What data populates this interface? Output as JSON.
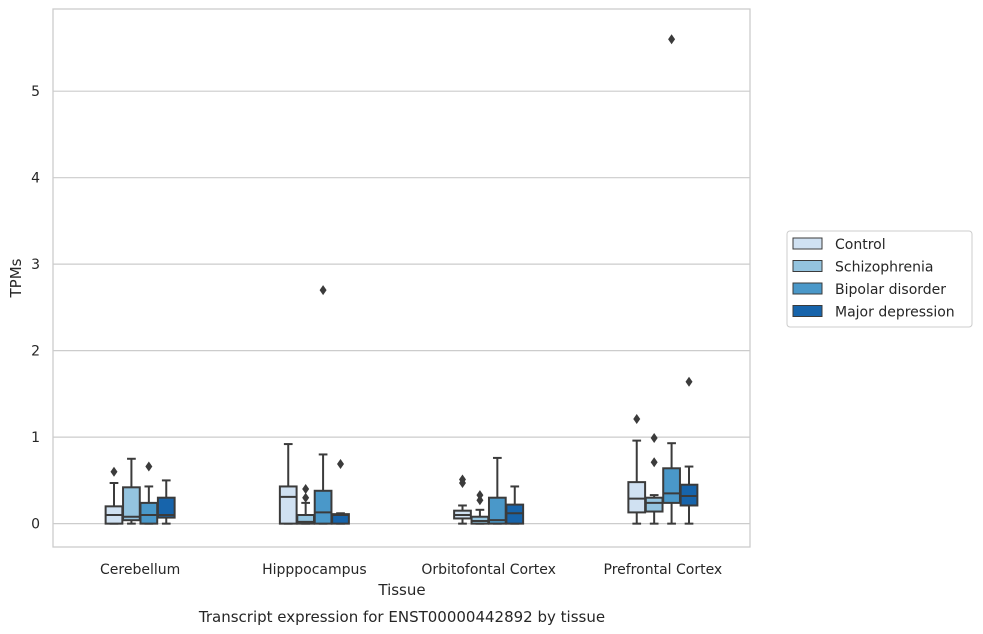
{
  "chart_data": {
    "type": "box",
    "caption": "Transcript expression for ENST00000442892 by tissue",
    "xlabel": "Tissue",
    "ylabel": "TPMs",
    "ylim": [
      -0.27,
      5.95
    ],
    "yticks": [
      0,
      1,
      2,
      3,
      4,
      5
    ],
    "grid": "horizontal",
    "legend_position": "right",
    "categories": [
      "Cerebellum",
      "Hipppocampus",
      "Orbitofontal Cortex",
      "Prefrontal Cortex"
    ],
    "series": [
      {
        "name": "Control",
        "color": "#d0e1f2",
        "boxes": [
          {
            "whislo": 0.0,
            "q1": 0.0,
            "med": 0.1,
            "q3": 0.2,
            "whishi": 0.47,
            "fliers": [
              0.6
            ]
          },
          {
            "whislo": 0.0,
            "q1": 0.0,
            "med": 0.31,
            "q3": 0.43,
            "whishi": 0.92,
            "fliers": []
          },
          {
            "whislo": 0.0,
            "q1": 0.06,
            "med": 0.1,
            "q3": 0.15,
            "whishi": 0.21,
            "fliers": [
              0.47,
              0.51
            ]
          },
          {
            "whislo": 0.0,
            "q1": 0.13,
            "med": 0.29,
            "q3": 0.48,
            "whishi": 0.96,
            "fliers": [
              1.21
            ]
          }
        ]
      },
      {
        "name": "Schizophrenia",
        "color": "#94c4df",
        "boxes": [
          {
            "whislo": 0.0,
            "q1": 0.04,
            "med": 0.08,
            "q3": 0.42,
            "whishi": 0.75,
            "fliers": []
          },
          {
            "whislo": 0.0,
            "q1": 0.0,
            "med": 0.02,
            "q3": 0.1,
            "whishi": 0.24,
            "fliers": [
              0.3,
              0.4
            ]
          },
          {
            "whislo": 0.0,
            "q1": 0.0,
            "med": 0.03,
            "q3": 0.08,
            "whishi": 0.16,
            "fliers": [
              0.27,
              0.33
            ]
          },
          {
            "whislo": 0.0,
            "q1": 0.14,
            "med": 0.24,
            "q3": 0.3,
            "whishi": 0.33,
            "fliers": [
              0.71,
              0.99
            ]
          }
        ]
      },
      {
        "name": "Bipolar disorder",
        "color": "#4a98c9",
        "boxes": [
          {
            "whislo": 0.0,
            "q1": 0.0,
            "med": 0.1,
            "q3": 0.24,
            "whishi": 0.43,
            "fliers": [
              0.66
            ]
          },
          {
            "whislo": 0.0,
            "q1": 0.0,
            "med": 0.13,
            "q3": 0.38,
            "whishi": 0.8,
            "fliers": [
              2.7
            ]
          },
          {
            "whislo": 0.0,
            "q1": 0.0,
            "med": 0.04,
            "q3": 0.3,
            "whishi": 0.76,
            "fliers": []
          },
          {
            "whislo": 0.0,
            "q1": 0.24,
            "med": 0.35,
            "q3": 0.64,
            "whishi": 0.93,
            "fliers": [
              5.6
            ]
          }
        ]
      },
      {
        "name": "Major depression",
        "color": "#1764ab",
        "boxes": [
          {
            "whislo": 0.0,
            "q1": 0.07,
            "med": 0.1,
            "q3": 0.3,
            "whishi": 0.5,
            "fliers": []
          },
          {
            "whislo": 0.0,
            "q1": 0.0,
            "med": 0.1,
            "q3": 0.11,
            "whishi": 0.12,
            "fliers": [
              0.69
            ]
          },
          {
            "whislo": 0.0,
            "q1": 0.0,
            "med": 0.12,
            "q3": 0.22,
            "whishi": 0.43,
            "fliers": []
          },
          {
            "whislo": 0.0,
            "q1": 0.21,
            "med": 0.32,
            "q3": 0.45,
            "whishi": 0.66,
            "fliers": [
              1.64
            ]
          }
        ]
      }
    ]
  }
}
